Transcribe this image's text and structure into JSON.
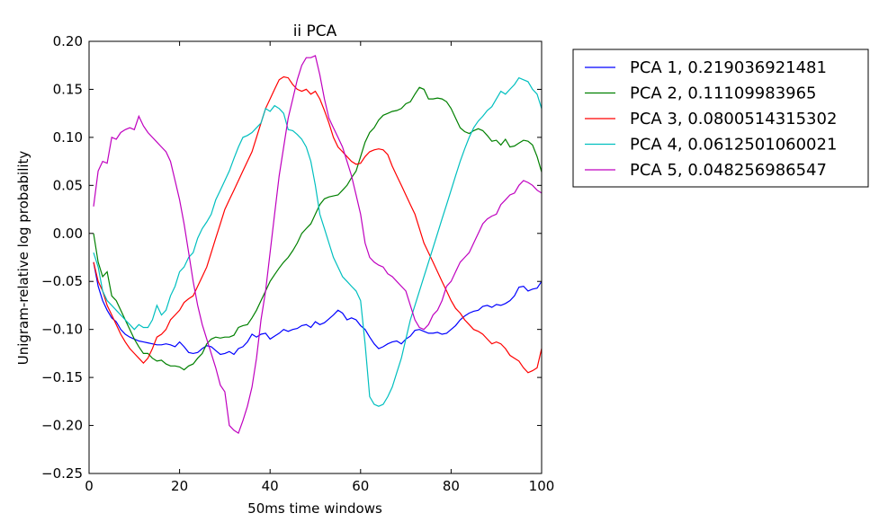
{
  "chart_data": {
    "type": "line",
    "title": "ii PCA",
    "xlabel": "50ms time windows",
    "ylabel": "Unigram-relative log probability",
    "xlim": [
      0,
      100
    ],
    "ylim": [
      -0.25,
      0.2
    ],
    "xticks": [
      0,
      20,
      40,
      60,
      80,
      100
    ],
    "xtick_labels": [
      "0",
      "20",
      "40",
      "60",
      "80",
      "100"
    ],
    "yticks": [
      -0.25,
      -0.2,
      -0.15,
      -0.1,
      -0.05,
      0.0,
      0.05,
      0.1,
      0.15,
      0.2
    ],
    "ytick_labels": [
      "−0.25",
      "−0.20",
      "−0.15",
      "−0.10",
      "−0.05",
      "0.00",
      "0.05",
      "0.10",
      "0.15",
      "0.20"
    ],
    "grid": false,
    "legend_position": "outside-right",
    "x": [
      1,
      2,
      3,
      4,
      5,
      6,
      7,
      8,
      9,
      10,
      11,
      12,
      13,
      14,
      15,
      16,
      17,
      18,
      19,
      20,
      21,
      22,
      23,
      24,
      25,
      26,
      27,
      28,
      29,
      30,
      31,
      32,
      33,
      34,
      35,
      36,
      37,
      38,
      39,
      40,
      41,
      42,
      43,
      44,
      45,
      46,
      47,
      48,
      49,
      50,
      51,
      52,
      53,
      54,
      55,
      56,
      57,
      58,
      59,
      60,
      61,
      62,
      63,
      64,
      65,
      66,
      67,
      68,
      69,
      70,
      71,
      72,
      73,
      74,
      75,
      76,
      77,
      78,
      79,
      80,
      81,
      82,
      83,
      84,
      85,
      86,
      87,
      88,
      89,
      90,
      91,
      92,
      93,
      94,
      95,
      96,
      97,
      98,
      99,
      100
    ],
    "series": [
      {
        "name": "PCA 1, 0.219036921481",
        "color": "#0000ff",
        "values": [
          -0.03,
          -0.055,
          -0.07,
          -0.08,
          -0.088,
          -0.092,
          -0.1,
          -0.105,
          -0.108,
          -0.11,
          -0.112,
          -0.113,
          -0.114,
          -0.115,
          -0.116,
          -0.116,
          -0.115,
          -0.116,
          -0.118,
          -0.113,
          -0.118,
          -0.124,
          -0.125,
          -0.124,
          -0.12,
          -0.117,
          -0.118,
          -0.122,
          -0.126,
          -0.125,
          -0.123,
          -0.126,
          -0.12,
          -0.118,
          -0.113,
          -0.105,
          -0.108,
          -0.105,
          -0.104,
          -0.11,
          -0.107,
          -0.104,
          -0.1,
          -0.102,
          -0.1,
          -0.099,
          -0.096,
          -0.095,
          -0.098,
          -0.092,
          -0.095,
          -0.093,
          -0.089,
          -0.085,
          -0.08,
          -0.083,
          -0.09,
          -0.088,
          -0.09,
          -0.096,
          -0.1,
          -0.108,
          -0.115,
          -0.12,
          -0.118,
          -0.115,
          -0.113,
          -0.112,
          -0.115,
          -0.11,
          -0.107,
          -0.101,
          -0.1,
          -0.102,
          -0.104,
          -0.104,
          -0.103,
          -0.105,
          -0.104,
          -0.1,
          -0.096,
          -0.09,
          -0.086,
          -0.083,
          -0.081,
          -0.08,
          -0.076,
          -0.075,
          -0.077,
          -0.074,
          -0.075,
          -0.073,
          -0.07,
          -0.065,
          -0.056,
          -0.055,
          -0.06,
          -0.058,
          -0.057,
          -0.05
        ]
      },
      {
        "name": "PCA 2, 0.11109983965",
        "color": "#008000",
        "values": [
          0.0,
          -0.03,
          -0.045,
          -0.04,
          -0.065,
          -0.07,
          -0.08,
          -0.09,
          -0.1,
          -0.11,
          -0.118,
          -0.125,
          -0.125,
          -0.13,
          -0.133,
          -0.132,
          -0.136,
          -0.138,
          -0.138,
          -0.139,
          -0.142,
          -0.138,
          -0.136,
          -0.13,
          -0.125,
          -0.115,
          -0.11,
          -0.108,
          -0.109,
          -0.108,
          -0.108,
          -0.106,
          -0.098,
          -0.096,
          -0.095,
          -0.088,
          -0.08,
          -0.07,
          -0.06,
          -0.05,
          -0.043,
          -0.036,
          -0.03,
          -0.025,
          -0.018,
          -0.01,
          0.0,
          0.005,
          0.01,
          0.02,
          0.03,
          0.036,
          0.038,
          0.039,
          0.04,
          0.045,
          0.05,
          0.058,
          0.065,
          0.08,
          0.095,
          0.105,
          0.11,
          0.118,
          0.123,
          0.125,
          0.127,
          0.128,
          0.13,
          0.135,
          0.137,
          0.145,
          0.152,
          0.15,
          0.14,
          0.14,
          0.141,
          0.14,
          0.137,
          0.13,
          0.12,
          0.11,
          0.106,
          0.104,
          0.107,
          0.109,
          0.107,
          0.102,
          0.096,
          0.097,
          0.092,
          0.098,
          0.09,
          0.091,
          0.094,
          0.097,
          0.096,
          0.092,
          0.08,
          0.064
        ]
      },
      {
        "name": "PCA 3, 0.0800514315302",
        "color": "#ff0000",
        "values": [
          -0.03,
          -0.05,
          -0.06,
          -0.075,
          -0.085,
          -0.095,
          -0.105,
          -0.113,
          -0.12,
          -0.125,
          -0.13,
          -0.135,
          -0.13,
          -0.12,
          -0.108,
          -0.105,
          -0.1,
          -0.09,
          -0.085,
          -0.08,
          -0.072,
          -0.068,
          -0.065,
          -0.055,
          -0.045,
          -0.035,
          -0.02,
          -0.005,
          0.01,
          0.025,
          0.035,
          0.045,
          0.055,
          0.065,
          0.075,
          0.085,
          0.1,
          0.115,
          0.13,
          0.14,
          0.15,
          0.16,
          0.163,
          0.162,
          0.155,
          0.15,
          0.148,
          0.15,
          0.145,
          0.148,
          0.14,
          0.128,
          0.115,
          0.1,
          0.09,
          0.085,
          0.08,
          0.075,
          0.072,
          0.073,
          0.08,
          0.085,
          0.087,
          0.088,
          0.087,
          0.082,
          0.07,
          0.06,
          0.05,
          0.04,
          0.03,
          0.02,
          0.005,
          -0.01,
          -0.02,
          -0.03,
          -0.04,
          -0.05,
          -0.06,
          -0.07,
          -0.078,
          -0.083,
          -0.09,
          -0.095,
          -0.1,
          -0.102,
          -0.105,
          -0.11,
          -0.115,
          -0.113,
          -0.115,
          -0.12,
          -0.127,
          -0.13,
          -0.133,
          -0.14,
          -0.145,
          -0.143,
          -0.14,
          -0.12
        ]
      },
      {
        "name": "PCA 4, 0.0612501060021",
        "color": "#00bfbf",
        "values": [
          -0.02,
          -0.035,
          -0.06,
          -0.07,
          -0.075,
          -0.08,
          -0.085,
          -0.09,
          -0.095,
          -0.1,
          -0.095,
          -0.098,
          -0.098,
          -0.09,
          -0.075,
          -0.085,
          -0.08,
          -0.065,
          -0.055,
          -0.04,
          -0.035,
          -0.025,
          -0.02,
          -0.005,
          0.005,
          0.012,
          0.02,
          0.035,
          0.045,
          0.055,
          0.065,
          0.078,
          0.09,
          0.1,
          0.102,
          0.105,
          0.11,
          0.115,
          0.13,
          0.127,
          0.133,
          0.13,
          0.125,
          0.108,
          0.107,
          0.103,
          0.098,
          0.09,
          0.075,
          0.05,
          0.02,
          0.005,
          -0.01,
          -0.025,
          -0.035,
          -0.045,
          -0.05,
          -0.055,
          -0.06,
          -0.07,
          -0.115,
          -0.17,
          -0.178,
          -0.18,
          -0.178,
          -0.17,
          -0.16,
          -0.145,
          -0.13,
          -0.11,
          -0.09,
          -0.075,
          -0.06,
          -0.045,
          -0.03,
          -0.015,
          0.0,
          0.015,
          0.03,
          0.045,
          0.06,
          0.075,
          0.088,
          0.1,
          0.11,
          0.117,
          0.122,
          0.128,
          0.132,
          0.14,
          0.148,
          0.145,
          0.15,
          0.155,
          0.162,
          0.16,
          0.158,
          0.15,
          0.145,
          0.13
        ]
      },
      {
        "name": "PCA 5, 0.048256986547",
        "color": "#bf00bf",
        "values": [
          0.028,
          0.065,
          0.075,
          0.073,
          0.1,
          0.098,
          0.105,
          0.108,
          0.11,
          0.108,
          0.122,
          0.112,
          0.105,
          0.1,
          0.095,
          0.09,
          0.085,
          0.075,
          0.055,
          0.035,
          0.01,
          -0.02,
          -0.05,
          -0.075,
          -0.095,
          -0.11,
          -0.125,
          -0.14,
          -0.158,
          -0.165,
          -0.2,
          -0.205,
          -0.208,
          -0.195,
          -0.18,
          -0.16,
          -0.13,
          -0.09,
          -0.06,
          -0.02,
          0.02,
          0.06,
          0.09,
          0.12,
          0.14,
          0.16,
          0.175,
          0.183,
          0.183,
          0.185,
          0.165,
          0.14,
          0.12,
          0.11,
          0.1,
          0.09,
          0.075,
          0.06,
          0.04,
          0.02,
          -0.01,
          -0.025,
          -0.03,
          -0.033,
          -0.035,
          -0.042,
          -0.045,
          -0.05,
          -0.055,
          -0.06,
          -0.075,
          -0.09,
          -0.098,
          -0.1,
          -0.095,
          -0.085,
          -0.08,
          -0.07,
          -0.055,
          -0.05,
          -0.04,
          -0.03,
          -0.025,
          -0.02,
          -0.01,
          0.0,
          0.01,
          0.015,
          0.018,
          0.02,
          0.03,
          0.035,
          0.04,
          0.042,
          0.05,
          0.055,
          0.053,
          0.05,
          0.045,
          0.042
        ]
      }
    ]
  }
}
